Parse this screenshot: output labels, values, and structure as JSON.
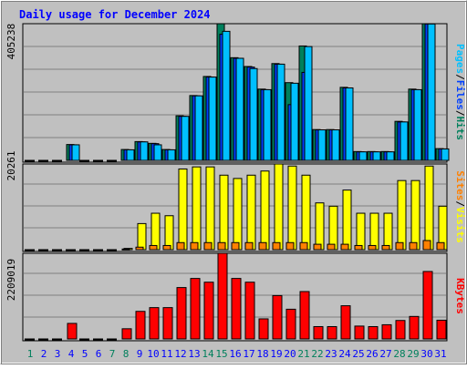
{
  "title": "Daily usage for December 2024",
  "colors": {
    "background": "#c0c0c0",
    "title": "#0000ff",
    "hits": "#00805c",
    "files": "#0040ff",
    "pages": "#00c0ff",
    "visits": "#ffff00",
    "sites": "#ff8000",
    "kbytes": "#ff0000",
    "weekend_day": "#00805c",
    "weekday": "#0000ff"
  },
  "chart_data": [
    {
      "type": "bar",
      "panel": "hits-files-pages",
      "categories": [
        "1",
        "2",
        "3",
        "4",
        "5",
        "6",
        "7",
        "8",
        "9",
        "10",
        "11",
        "12",
        "13",
        "14",
        "15",
        "16",
        "17",
        "18",
        "19",
        "20",
        "21",
        "22",
        "23",
        "24",
        "25",
        "26",
        "27",
        "28",
        "29",
        "30",
        "31"
      ],
      "weekend_days": [
        "1",
        "7",
        "8",
        "14",
        "15",
        "21",
        "22",
        "28",
        "29"
      ],
      "ytick_label": "405238",
      "ytick_value": 405238,
      "ylim": [
        0,
        466000
      ],
      "legend": [
        {
          "label": "Pages",
          "color": "#00c0ff"
        },
        {
          "label": "Files",
          "color": "#0040ff"
        },
        {
          "label": "Hits",
          "color": "#00805c"
        }
      ],
      "legend_separator": "/",
      "series": [
        {
          "name": "Hits",
          "values": [
            0,
            0,
            0,
            54000,
            0,
            0,
            0,
            37000,
            64000,
            58000,
            37000,
            152000,
            221000,
            286000,
            466000,
            350000,
            320000,
            243000,
            330000,
            265000,
            390000,
            105000,
            105000,
            249000,
            30000,
            30000,
            30000,
            133000,
            243000,
            466000,
            40000
          ]
        },
        {
          "name": "Files",
          "values": [
            0,
            0,
            0,
            53000,
            0,
            0,
            0,
            36000,
            63000,
            57000,
            36000,
            150000,
            220000,
            284000,
            430000,
            348000,
            318000,
            241000,
            328000,
            190000,
            300000,
            104000,
            104000,
            247000,
            29000,
            29000,
            29000,
            131000,
            241000,
            465000,
            39000
          ]
        },
        {
          "name": "Pages",
          "values": [
            0,
            0,
            0,
            53000,
            0,
            0,
            0,
            36000,
            63000,
            53000,
            36000,
            150000,
            220000,
            284000,
            440000,
            348000,
            313000,
            241000,
            328000,
            263000,
            388000,
            104000,
            104000,
            247000,
            29000,
            29000,
            29000,
            131000,
            241000,
            465000,
            39000
          ]
        }
      ]
    },
    {
      "type": "bar",
      "panel": "visits-sites",
      "categories": [
        "1",
        "2",
        "3",
        "4",
        "5",
        "6",
        "7",
        "8",
        "9",
        "10",
        "11",
        "12",
        "13",
        "14",
        "15",
        "16",
        "17",
        "18",
        "19",
        "20",
        "21",
        "22",
        "23",
        "24",
        "25",
        "26",
        "27",
        "28",
        "29",
        "30",
        "31"
      ],
      "ytick_label": "20261",
      "ytick_value": 20261,
      "ylim": [
        0,
        20700
      ],
      "legend": [
        {
          "label": "Sites",
          "color": "#ff8000"
        },
        {
          "label": "Visits",
          "color": "#ffff00"
        }
      ],
      "legend_separator": "/",
      "series": [
        {
          "name": "Visits",
          "values": [
            0,
            0,
            0,
            0,
            0,
            0,
            0,
            300,
            6300,
            8800,
            8200,
            19500,
            20000,
            20000,
            18000,
            17200,
            18000,
            19000,
            20700,
            20200,
            18000,
            11300,
            10500,
            14400,
            8800,
            8800,
            8800,
            16700,
            16700,
            20200,
            10500
          ]
        },
        {
          "name": "Sites",
          "values": [
            0,
            0,
            0,
            0,
            0,
            0,
            0,
            150,
            600,
            1000,
            1000,
            1700,
            1700,
            1700,
            1700,
            1700,
            1700,
            1700,
            1700,
            1700,
            1700,
            1300,
            1300,
            1300,
            1000,
            1000,
            1000,
            1700,
            1700,
            2200,
            1700
          ]
        }
      ]
    },
    {
      "type": "bar",
      "panel": "kbytes",
      "categories": [
        "1",
        "2",
        "3",
        "4",
        "5",
        "6",
        "7",
        "8",
        "9",
        "10",
        "11",
        "12",
        "13",
        "14",
        "15",
        "16",
        "17",
        "18",
        "19",
        "20",
        "21",
        "22",
        "23",
        "24",
        "25",
        "26",
        "27",
        "28",
        "29",
        "30",
        "31"
      ],
      "ytick_label": "2209019",
      "ytick_value": 2209019,
      "ylim": [
        0,
        3200000
      ],
      "legend": [
        {
          "label": "KBytes",
          "color": "#ff0000"
        }
      ],
      "series": [
        {
          "name": "KBytes",
          "values": [
            0,
            0,
            0,
            580000,
            0,
            0,
            0,
            380000,
            1030000,
            1170000,
            1170000,
            1920000,
            2260000,
            2120000,
            3200000,
            2260000,
            2120000,
            750000,
            1620000,
            1110000,
            1770000,
            460000,
            460000,
            1240000,
            480000,
            460000,
            530000,
            690000,
            840000,
            2520000,
            700000
          ]
        }
      ]
    }
  ]
}
